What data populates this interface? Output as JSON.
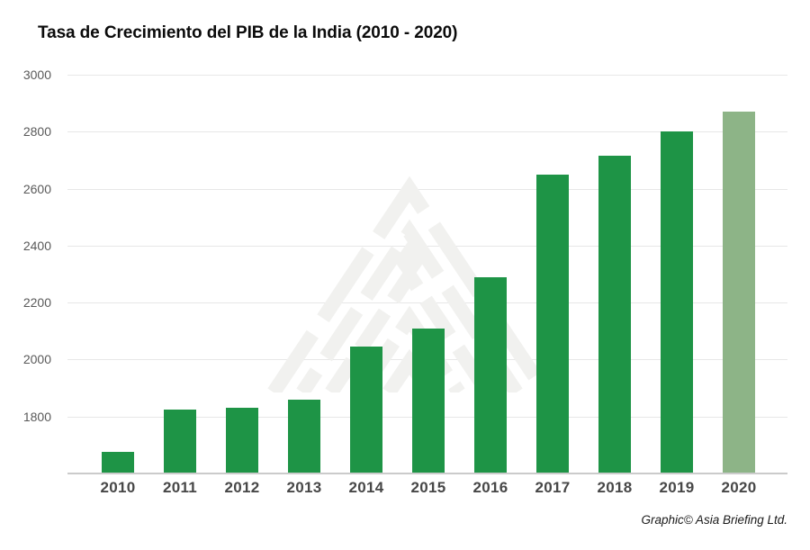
{
  "header": {
    "title": "Tasa de Crecimiento del PIB de la India (2010 - 2020)"
  },
  "footer": {
    "credit": "Graphic© Asia Briefing Ltd."
  },
  "chart_data": {
    "type": "bar",
    "title": "Tasa de Crecimiento del PIB de la India (2010 - 2020)",
    "categories": [
      "2010",
      "2011",
      "2012",
      "2013",
      "2014",
      "2015",
      "2016",
      "2017",
      "2018",
      "2019",
      "2020"
    ],
    "values": [
      1675,
      1825,
      1830,
      1860,
      2045,
      2110,
      2290,
      2650,
      2715,
      2800,
      2870
    ],
    "xlabel": "",
    "ylabel": "",
    "ylim": [
      1600,
      3000
    ],
    "yticks": [
      1800,
      2000,
      2200,
      2400,
      2600,
      2800,
      3000
    ],
    "grid": true,
    "legend": "none",
    "bar_color": "#1e9446",
    "highlight": {
      "category": "2020",
      "color": "#8db487"
    }
  },
  "style": {
    "background": "#ffffff",
    "gridline_color": "#e7e7e7",
    "axis_line_color": "#cbcbcb",
    "y_label_color": "#595959",
    "x_label_color": "#474747",
    "title_color": "#0b0b0b",
    "watermark_color": "#f1f1ef"
  },
  "icons": {
    "watermark": "asia-briefing-maze-pyramid-logo"
  }
}
